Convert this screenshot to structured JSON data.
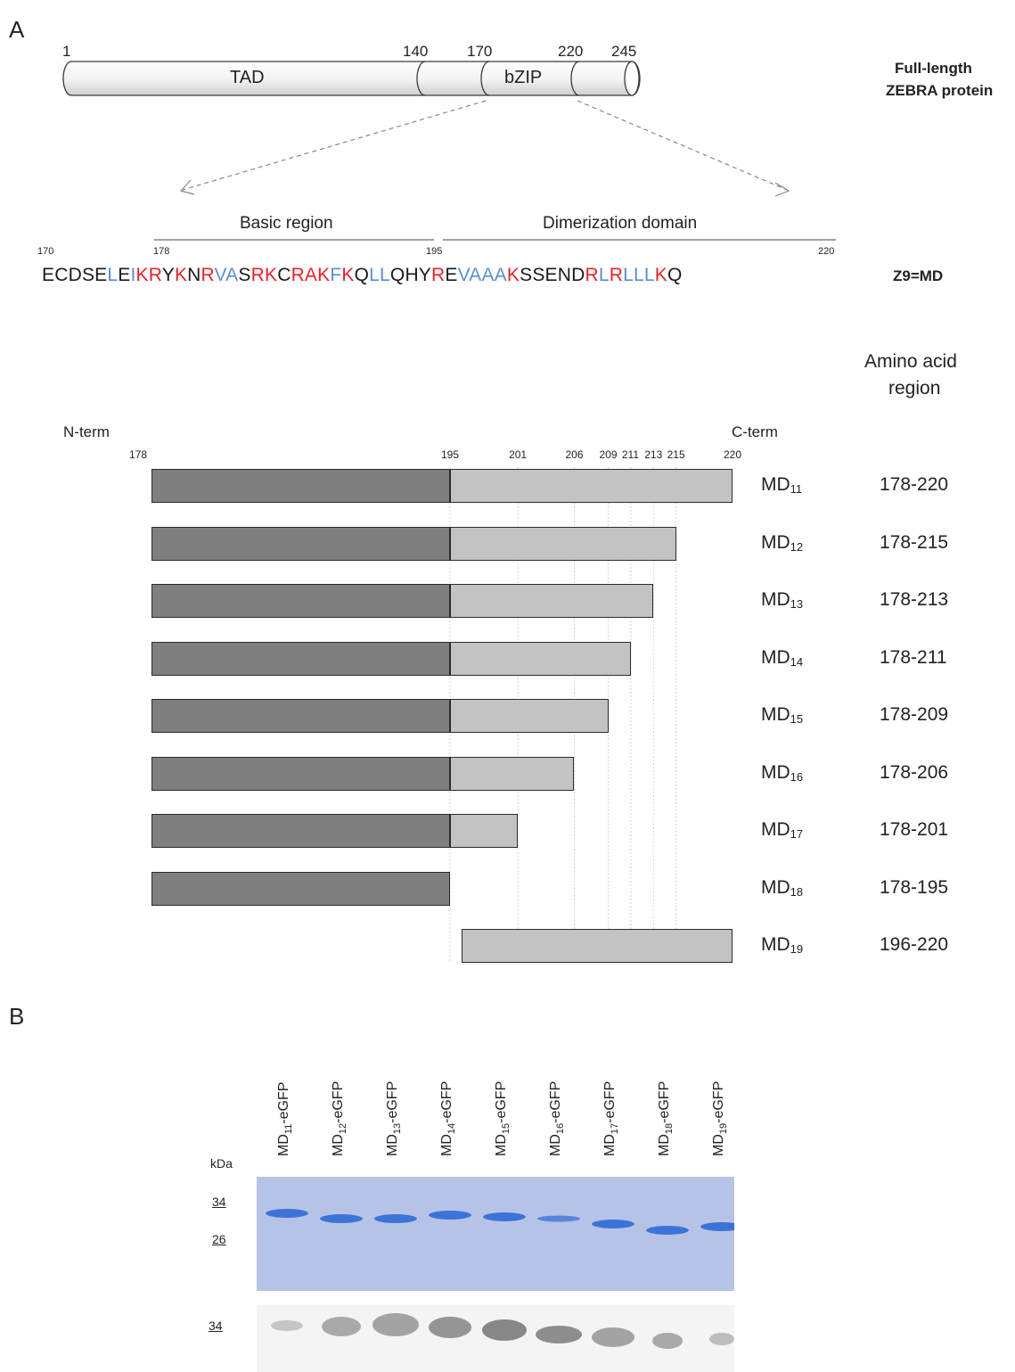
{
  "panel_a": {
    "letter": "A",
    "domain_bar": {
      "positions": [
        "1",
        "140",
        "170",
        "220",
        "245"
      ],
      "tad_label": "TAD",
      "bzip_label": "bZIP",
      "protein_label_line1": "Full-length",
      "protein_label_line2": "ZEBRA protein"
    },
    "regions": {
      "basic": "Basic region",
      "dimerization": "Dimerization domain"
    },
    "sequence": {
      "pos_170": "170",
      "pos_178": "178",
      "pos_195": "195",
      "pos_220": "220",
      "label": "Z9=MD",
      "residues": [
        {
          "t": "ECDSE",
          "c": "black"
        },
        {
          "t": "L",
          "c": "blue"
        },
        {
          "t": "E",
          "c": "black"
        },
        {
          "t": "I",
          "c": "blue"
        },
        {
          "t": "KR",
          "c": "red"
        },
        {
          "t": "Y",
          "c": "black"
        },
        {
          "t": "K",
          "c": "red"
        },
        {
          "t": "N",
          "c": "black"
        },
        {
          "t": "R",
          "c": "red"
        },
        {
          "t": "VA",
          "c": "blue"
        },
        {
          "t": "S",
          "c": "black"
        },
        {
          "t": "RK",
          "c": "red"
        },
        {
          "t": "C",
          "c": "black"
        },
        {
          "t": "RAK",
          "c": "red"
        },
        {
          "t": "F",
          "c": "blue"
        },
        {
          "t": "K",
          "c": "red"
        },
        {
          "t": "Q",
          "c": "black"
        },
        {
          "t": "LL",
          "c": "blue"
        },
        {
          "t": "QHY",
          "c": "black"
        },
        {
          "t": "R",
          "c": "red"
        },
        {
          "t": "E",
          "c": "black"
        },
        {
          "t": "VAAA",
          "c": "blue"
        },
        {
          "t": "K",
          "c": "red"
        },
        {
          "t": "SSEND",
          "c": "black"
        },
        {
          "t": "R",
          "c": "red"
        },
        {
          "t": "L",
          "c": "blue"
        },
        {
          "t": "R",
          "c": "red"
        },
        {
          "t": "LLL",
          "c": "blue"
        },
        {
          "t": "K",
          "c": "red"
        },
        {
          "t": "Q",
          "c": "black"
        }
      ]
    },
    "amino_acid_header_line1": "Amino acid",
    "amino_acid_header_line2": "region",
    "n_term": "N-term",
    "c_term": "C-term",
    "scale_ticks": [
      "178",
      "195",
      "201",
      "206",
      "209",
      "211",
      "213",
      "215",
      "220"
    ],
    "constructs": [
      {
        "name": "MD",
        "sub": "11",
        "range": "178-220",
        "start": 178,
        "end": 220
      },
      {
        "name": "MD",
        "sub": "12",
        "range": "178-215",
        "start": 178,
        "end": 215
      },
      {
        "name": "MD",
        "sub": "13",
        "range": "178-213",
        "start": 178,
        "end": 213
      },
      {
        "name": "MD",
        "sub": "14",
        "range": "178-211",
        "start": 178,
        "end": 211
      },
      {
        "name": "MD",
        "sub": "15",
        "range": "178-209",
        "start": 178,
        "end": 209
      },
      {
        "name": "MD",
        "sub": "16",
        "range": "178-206",
        "start": 178,
        "end": 206
      },
      {
        "name": "MD",
        "sub": "17",
        "range": "178-201",
        "start": 178,
        "end": 201
      },
      {
        "name": "MD",
        "sub": "18",
        "range": "178-195",
        "start": 178,
        "end": 195
      },
      {
        "name": "MD",
        "sub": "19",
        "range": "196-220",
        "start": 196,
        "end": 220
      }
    ]
  },
  "panel_b": {
    "letter": "B",
    "kda_label": "kDa",
    "markers_top": [
      "34",
      "26"
    ],
    "marker_bottom": "34",
    "lanes": [
      {
        "name": "MD",
        "sub": "11",
        "suffix": "-eGFP"
      },
      {
        "name": "MD",
        "sub": "12",
        "suffix": "-eGFP"
      },
      {
        "name": "MD",
        "sub": "13",
        "suffix": "-eGFP"
      },
      {
        "name": "MD",
        "sub": "14",
        "suffix": "-eGFP"
      },
      {
        "name": "MD",
        "sub": "15",
        "suffix": "-eGFP"
      },
      {
        "name": "MD",
        "sub": "16",
        "suffix": "-eGFP"
      },
      {
        "name": "MD",
        "sub": "17",
        "suffix": "-eGFP"
      },
      {
        "name": "MD",
        "sub": "18",
        "suffix": "-eGFP"
      },
      {
        "name": "MD",
        "sub": "19",
        "suffix": "-eGFP"
      }
    ],
    "colors": {
      "gel_bg": "#b7c3e6",
      "band": "#2f6ad6",
      "western_bg": "#f4f4f4",
      "western_band": "#6c6c6c"
    }
  }
}
